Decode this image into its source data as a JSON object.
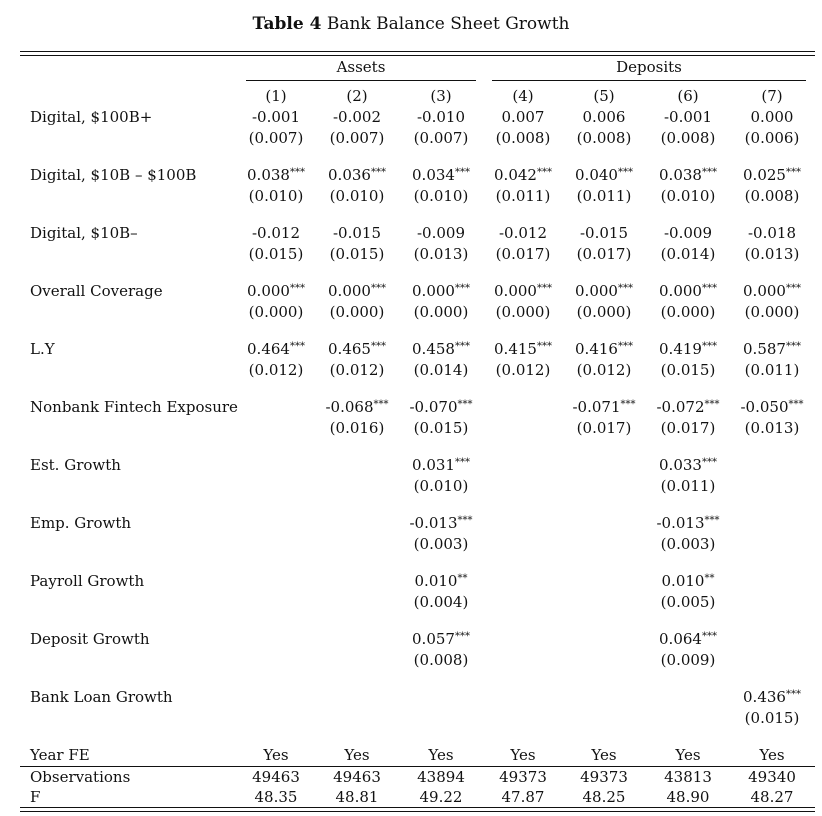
{
  "table": {
    "title_bold": "Table 4",
    "title_rest": "Bank Balance Sheet Growth",
    "groups": [
      "Assets",
      "Deposits"
    ],
    "columns": [
      "(1)",
      "(2)",
      "(3)",
      "(4)",
      "(5)",
      "(6)",
      "(7)"
    ],
    "rows": [
      {
        "label": "Digital, $100B+",
        "coef": [
          "-0.001",
          "-0.002",
          "-0.010",
          "0.007",
          "0.006",
          "-0.001",
          "0.000"
        ],
        "stars": [
          "",
          "",
          "",
          "",
          "",
          "",
          ""
        ],
        "se": [
          "(0.007)",
          "(0.007)",
          "(0.007)",
          "(0.008)",
          "(0.008)",
          "(0.008)",
          "(0.006)"
        ]
      },
      {
        "label": "Digital, $10B – $100B",
        "coef": [
          "0.038",
          "0.036",
          "0.034",
          "0.042",
          "0.040",
          "0.038",
          "0.025"
        ],
        "stars": [
          "***",
          "***",
          "***",
          "***",
          "***",
          "***",
          "***"
        ],
        "se": [
          "(0.010)",
          "(0.010)",
          "(0.010)",
          "(0.011)",
          "(0.011)",
          "(0.010)",
          "(0.008)"
        ]
      },
      {
        "label": "Digital, $10B–",
        "coef": [
          "-0.012",
          "-0.015",
          "-0.009",
          "-0.012",
          "-0.015",
          "-0.009",
          "-0.018"
        ],
        "stars": [
          "",
          "",
          "",
          "",
          "",
          "",
          ""
        ],
        "se": [
          "(0.015)",
          "(0.015)",
          "(0.013)",
          "(0.017)",
          "(0.017)",
          "(0.014)",
          "(0.013)"
        ]
      },
      {
        "label": "Overall Coverage",
        "coef": [
          "0.000",
          "0.000",
          "0.000",
          "0.000",
          "0.000",
          "0.000",
          "0.000"
        ],
        "stars": [
          "***",
          "***",
          "***",
          "***",
          "***",
          "***",
          "***"
        ],
        "se": [
          "(0.000)",
          "(0.000)",
          "(0.000)",
          "(0.000)",
          "(0.000)",
          "(0.000)",
          "(0.000)"
        ]
      },
      {
        "label": "L.Y",
        "coef": [
          "0.464",
          "0.465",
          "0.458",
          "0.415",
          "0.416",
          "0.419",
          "0.587"
        ],
        "stars": [
          "***",
          "***",
          "***",
          "***",
          "***",
          "***",
          "***"
        ],
        "se": [
          "(0.012)",
          "(0.012)",
          "(0.014)",
          "(0.012)",
          "(0.012)",
          "(0.015)",
          "(0.011)"
        ]
      },
      {
        "label": "Nonbank Fintech Exposure",
        "coef": [
          "",
          "-0.068",
          "-0.070",
          "",
          "-0.071",
          "-0.072",
          "-0.050"
        ],
        "stars": [
          "",
          "***",
          "***",
          "",
          "***",
          "***",
          "***"
        ],
        "se": [
          "",
          "(0.016)",
          "(0.015)",
          "",
          "(0.017)",
          "(0.017)",
          "(0.013)"
        ]
      },
      {
        "label": "Est. Growth",
        "coef": [
          "",
          "",
          "0.031",
          "",
          "",
          "0.033",
          ""
        ],
        "stars": [
          "",
          "",
          "***",
          "",
          "",
          "***",
          ""
        ],
        "se": [
          "",
          "",
          "(0.010)",
          "",
          "",
          "(0.011)",
          ""
        ]
      },
      {
        "label": "Emp. Growth",
        "coef": [
          "",
          "",
          "-0.013",
          "",
          "",
          "-0.013",
          ""
        ],
        "stars": [
          "",
          "",
          "***",
          "",
          "",
          "***",
          ""
        ],
        "se": [
          "",
          "",
          "(0.003)",
          "",
          "",
          "(0.003)",
          ""
        ]
      },
      {
        "label": "Payroll Growth",
        "coef": [
          "",
          "",
          "0.010",
          "",
          "",
          "0.010",
          ""
        ],
        "stars": [
          "",
          "",
          "**",
          "",
          "",
          "**",
          ""
        ],
        "se": [
          "",
          "",
          "(0.004)",
          "",
          "",
          "(0.005)",
          ""
        ]
      },
      {
        "label": "Deposit Growth",
        "coef": [
          "",
          "",
          "0.057",
          "",
          "",
          "0.064",
          ""
        ],
        "stars": [
          "",
          "",
          "***",
          "",
          "",
          "***",
          ""
        ],
        "se": [
          "",
          "",
          "(0.008)",
          "",
          "",
          "(0.009)",
          ""
        ]
      },
      {
        "label": "Bank Loan Growth",
        "coef": [
          "",
          "",
          "",
          "",
          "",
          "",
          "0.436"
        ],
        "stars": [
          "",
          "",
          "",
          "",
          "",
          "",
          "***"
        ],
        "se": [
          "",
          "",
          "",
          "",
          "",
          "",
          "(0.015)"
        ]
      }
    ],
    "footer": [
      {
        "label": "Year FE",
        "values": [
          "Yes",
          "Yes",
          "Yes",
          "Yes",
          "Yes",
          "Yes",
          "Yes"
        ]
      },
      {
        "label": "Observations",
        "values": [
          "49463",
          "49463",
          "43894",
          "49373",
          "49373",
          "43813",
          "49340"
        ]
      },
      {
        "label": "F",
        "values": [
          "48.35",
          "48.81",
          "49.22",
          "47.87",
          "48.25",
          "48.90",
          "48.27"
        ]
      }
    ]
  }
}
